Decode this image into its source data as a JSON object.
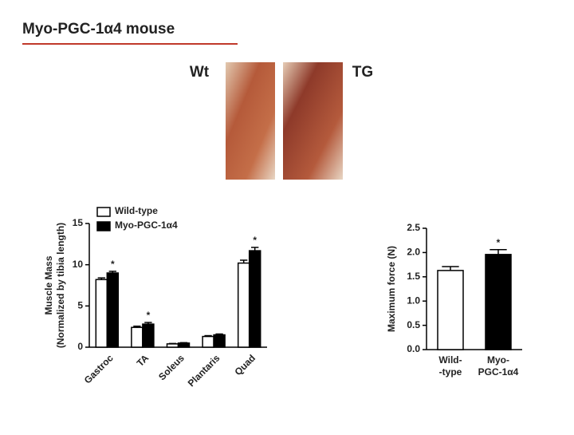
{
  "title": "Myo-PGC-1α4 mouse",
  "photo_labels": [
    "Wt",
    "TG"
  ],
  "chart_data": [
    {
      "type": "bar",
      "ylabel": [
        "Muscle Mass",
        "(Normalized by tibia length)"
      ],
      "categories": [
        "Gastroc",
        "TA",
        "Soleus",
        "Plantaris",
        "Quad"
      ],
      "series": [
        {
          "name": "Wild-type",
          "color": "#ffffff",
          "values": [
            8.2,
            2.4,
            0.4,
            1.3,
            10.2
          ],
          "errors": [
            0.2,
            0.15,
            0.05,
            0.1,
            0.35
          ]
        },
        {
          "name": "Myo-PGC-1α4",
          "color": "#000000",
          "values": [
            9.0,
            2.8,
            0.5,
            1.5,
            11.7
          ],
          "errors": [
            0.2,
            0.2,
            0.05,
            0.1,
            0.4
          ]
        }
      ],
      "significance": [
        "*",
        "*",
        null,
        null,
        "*"
      ],
      "ylim": [
        0,
        15
      ],
      "yticks": [
        0,
        5,
        10,
        15
      ],
      "legend": "top-left"
    },
    {
      "type": "bar",
      "ylabel": [
        "Maximum force (N)"
      ],
      "categories": [
        [
          "Wild-",
          "-type"
        ],
        [
          "Myo-",
          "PGC-1α4"
        ]
      ],
      "colors": [
        "#ffffff",
        "#000000"
      ],
      "values": [
        1.63,
        1.96
      ],
      "errors": [
        0.08,
        0.1
      ],
      "significance": [
        null,
        "*"
      ],
      "ylim": [
        0,
        2.5
      ],
      "yticks": [
        {
          "value": 0,
          "label": "0.0"
        },
        0.5,
        {
          "value": 1,
          "label": "1.0"
        },
        1.5,
        {
          "value": 2,
          "label": "2.0"
        },
        2.5
      ]
    }
  ]
}
